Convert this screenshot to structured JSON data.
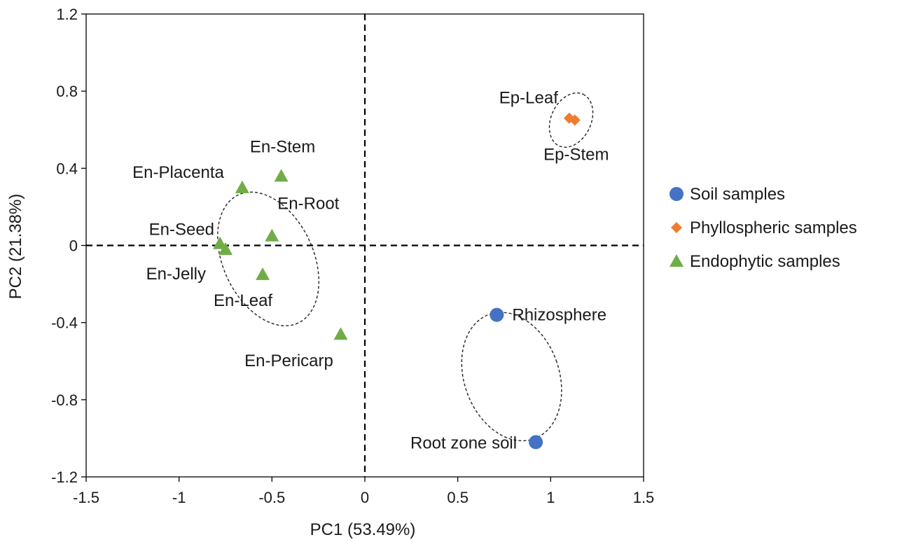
{
  "chart_data": {
    "type": "scatter",
    "title": "",
    "xlabel": "PC1 (53.49%)",
    "ylabel": "PC2 (21.38%)",
    "xlim": [
      -1.5,
      1.5
    ],
    "ylim": [
      -1.2,
      1.2
    ],
    "xticks": [
      "-1.5",
      "-1",
      "-0.5",
      "0",
      "0.5",
      "1",
      "1.5"
    ],
    "yticks": [
      "1.2",
      "0.8",
      "0.4",
      "0",
      "-0.4",
      "-0.8",
      "-1.2"
    ],
    "grid": false,
    "reference_lines": {
      "x": 0,
      "y": 0,
      "style": "dashed"
    },
    "legend_position": "right",
    "series": [
      {
        "name": "Soil samples",
        "marker": "circle",
        "color": "#4472C4",
        "points": [
          {
            "label": "Rhizosphere",
            "x": 0.71,
            "y": -0.36
          },
          {
            "label": "Root zone soil",
            "x": 0.92,
            "y": -1.02
          }
        ]
      },
      {
        "name": "Phyllospheric samples",
        "marker": "diamond",
        "color": "#ED7D31",
        "points": [
          {
            "label": "Ep-Leaf",
            "x": 1.1,
            "y": 0.66
          },
          {
            "label": "Ep-Stem",
            "x": 1.13,
            "y": 0.65
          }
        ]
      },
      {
        "name": "Endophytic samples",
        "marker": "triangle",
        "color": "#70AD47",
        "points": [
          {
            "label": "En-Stem",
            "x": -0.45,
            "y": 0.36
          },
          {
            "label": "En-Placenta",
            "x": -0.66,
            "y": 0.3
          },
          {
            "label": "En-Root",
            "x": -0.5,
            "y": 0.05
          },
          {
            "label": "En-Seed",
            "x": -0.78,
            "y": 0.01
          },
          {
            "label": "En-Jelly",
            "x": -0.75,
            "y": -0.02
          },
          {
            "label": "En-Leaf",
            "x": -0.55,
            "y": -0.15
          },
          {
            "label": "En-Pericarp",
            "x": -0.13,
            "y": -0.46
          }
        ]
      }
    ],
    "groups": [
      {
        "name": "Soil samples",
        "center": [
          0.79,
          -0.68
        ],
        "rx": 0.255,
        "ry": 0.3558,
        "angle": -20
      },
      {
        "name": "Phyllospheric samples",
        "center": [
          1.11,
          0.65
        ],
        "rx": 0.1533,
        "ry": 0.1075,
        "angle": -65
      },
      {
        "name": "Endophytic samples",
        "center": [
          -0.52,
          -0.07
        ],
        "rx": 0.3805,
        "ry": 0.2425,
        "angle": 65
      }
    ]
  }
}
